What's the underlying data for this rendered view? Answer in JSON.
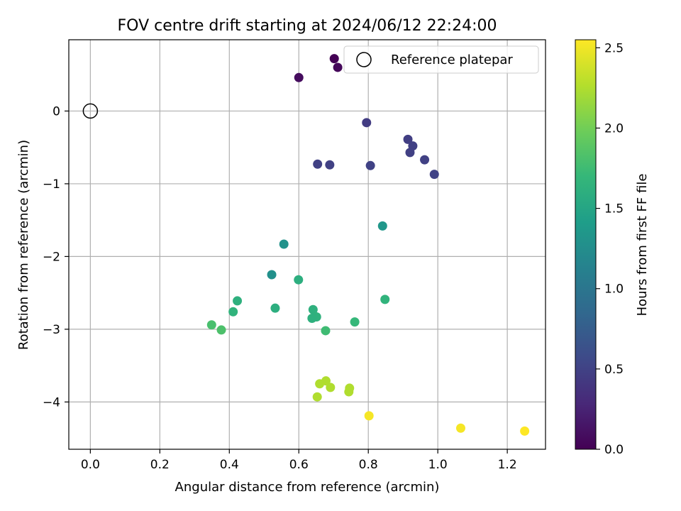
{
  "chart_data": {
    "type": "scatter",
    "title": "FOV centre drift starting at 2024/06/12 22:24:00",
    "xlabel": "Angular distance from reference (arcmin)",
    "ylabel": "Rotation from reference (arcmin)",
    "xlim": [
      -0.062,
      1.31
    ],
    "ylim": [
      -4.65,
      0.98
    ],
    "x_ticks": [
      0.0,
      0.2,
      0.4,
      0.6,
      0.8,
      1.0,
      1.2
    ],
    "x_tick_labels": [
      "0.0",
      "0.2",
      "0.4",
      "0.6",
      "0.8",
      "1.0",
      "1.2"
    ],
    "y_ticks": [
      0,
      -1,
      -2,
      -3,
      -4
    ],
    "y_tick_labels": [
      "0",
      "−1",
      "−2",
      "−3",
      "−4"
    ],
    "grid": true,
    "legend": {
      "position": "top-right",
      "entries": [
        "Reference platepar"
      ]
    },
    "reference_point": {
      "x": 0.0,
      "y": 0.0,
      "label": "Reference platepar"
    },
    "colorbar": {
      "label": "Hours from first FF file",
      "min": 0.0,
      "max": 2.55,
      "ticks": [
        0.0,
        0.5,
        1.0,
        1.5,
        2.0,
        2.5
      ],
      "tick_labels": [
        "0.0",
        "0.5",
        "1.0",
        "1.5",
        "2.0",
        "2.5"
      ],
      "colormap": "viridis"
    },
    "points": [
      {
        "x": 0.702,
        "y": 0.72,
        "c": 0.0
      },
      {
        "x": 0.712,
        "y": 0.6,
        "c": 0.05
      },
      {
        "x": 0.6,
        "y": 0.46,
        "c": 0.08
      },
      {
        "x": 0.795,
        "y": -0.16,
        "c": 0.45
      },
      {
        "x": 0.914,
        "y": -0.39,
        "c": 0.47
      },
      {
        "x": 0.928,
        "y": -0.48,
        "c": 0.48
      },
      {
        "x": 0.92,
        "y": -0.57,
        "c": 0.48
      },
      {
        "x": 0.962,
        "y": -0.67,
        "c": 0.49
      },
      {
        "x": 0.654,
        "y": -0.73,
        "c": 0.49
      },
      {
        "x": 0.689,
        "y": -0.74,
        "c": 0.49
      },
      {
        "x": 0.806,
        "y": -0.75,
        "c": 0.5
      },
      {
        "x": 0.99,
        "y": -0.87,
        "c": 0.5
      },
      {
        "x": 0.841,
        "y": -1.58,
        "c": 1.35
      },
      {
        "x": 0.557,
        "y": -1.83,
        "c": 1.3
      },
      {
        "x": 0.522,
        "y": -2.25,
        "c": 1.28
      },
      {
        "x": 0.599,
        "y": -2.32,
        "c": 1.6
      },
      {
        "x": 0.848,
        "y": -2.59,
        "c": 1.65
      },
      {
        "x": 0.423,
        "y": -2.61,
        "c": 1.62
      },
      {
        "x": 0.532,
        "y": -2.71,
        "c": 1.6
      },
      {
        "x": 0.641,
        "y": -2.73,
        "c": 1.62
      },
      {
        "x": 0.411,
        "y": -2.76,
        "c": 1.65
      },
      {
        "x": 0.651,
        "y": -2.83,
        "c": 1.63
      },
      {
        "x": 0.638,
        "y": -2.85,
        "c": 1.62
      },
      {
        "x": 0.761,
        "y": -2.9,
        "c": 1.7
      },
      {
        "x": 0.349,
        "y": -2.94,
        "c": 1.8
      },
      {
        "x": 0.377,
        "y": -3.01,
        "c": 1.82
      },
      {
        "x": 0.677,
        "y": -3.02,
        "c": 1.75
      },
      {
        "x": 0.678,
        "y": -3.71,
        "c": 2.25
      },
      {
        "x": 0.66,
        "y": -3.75,
        "c": 2.25
      },
      {
        "x": 0.691,
        "y": -3.8,
        "c": 2.25
      },
      {
        "x": 0.746,
        "y": -3.81,
        "c": 2.25
      },
      {
        "x": 0.744,
        "y": -3.86,
        "c": 2.25
      },
      {
        "x": 0.653,
        "y": -3.93,
        "c": 2.25
      },
      {
        "x": 0.802,
        "y": -4.19,
        "c": 2.52
      },
      {
        "x": 1.066,
        "y": -4.36,
        "c": 2.52
      },
      {
        "x": 1.25,
        "y": -4.4,
        "c": 2.55
      }
    ]
  }
}
